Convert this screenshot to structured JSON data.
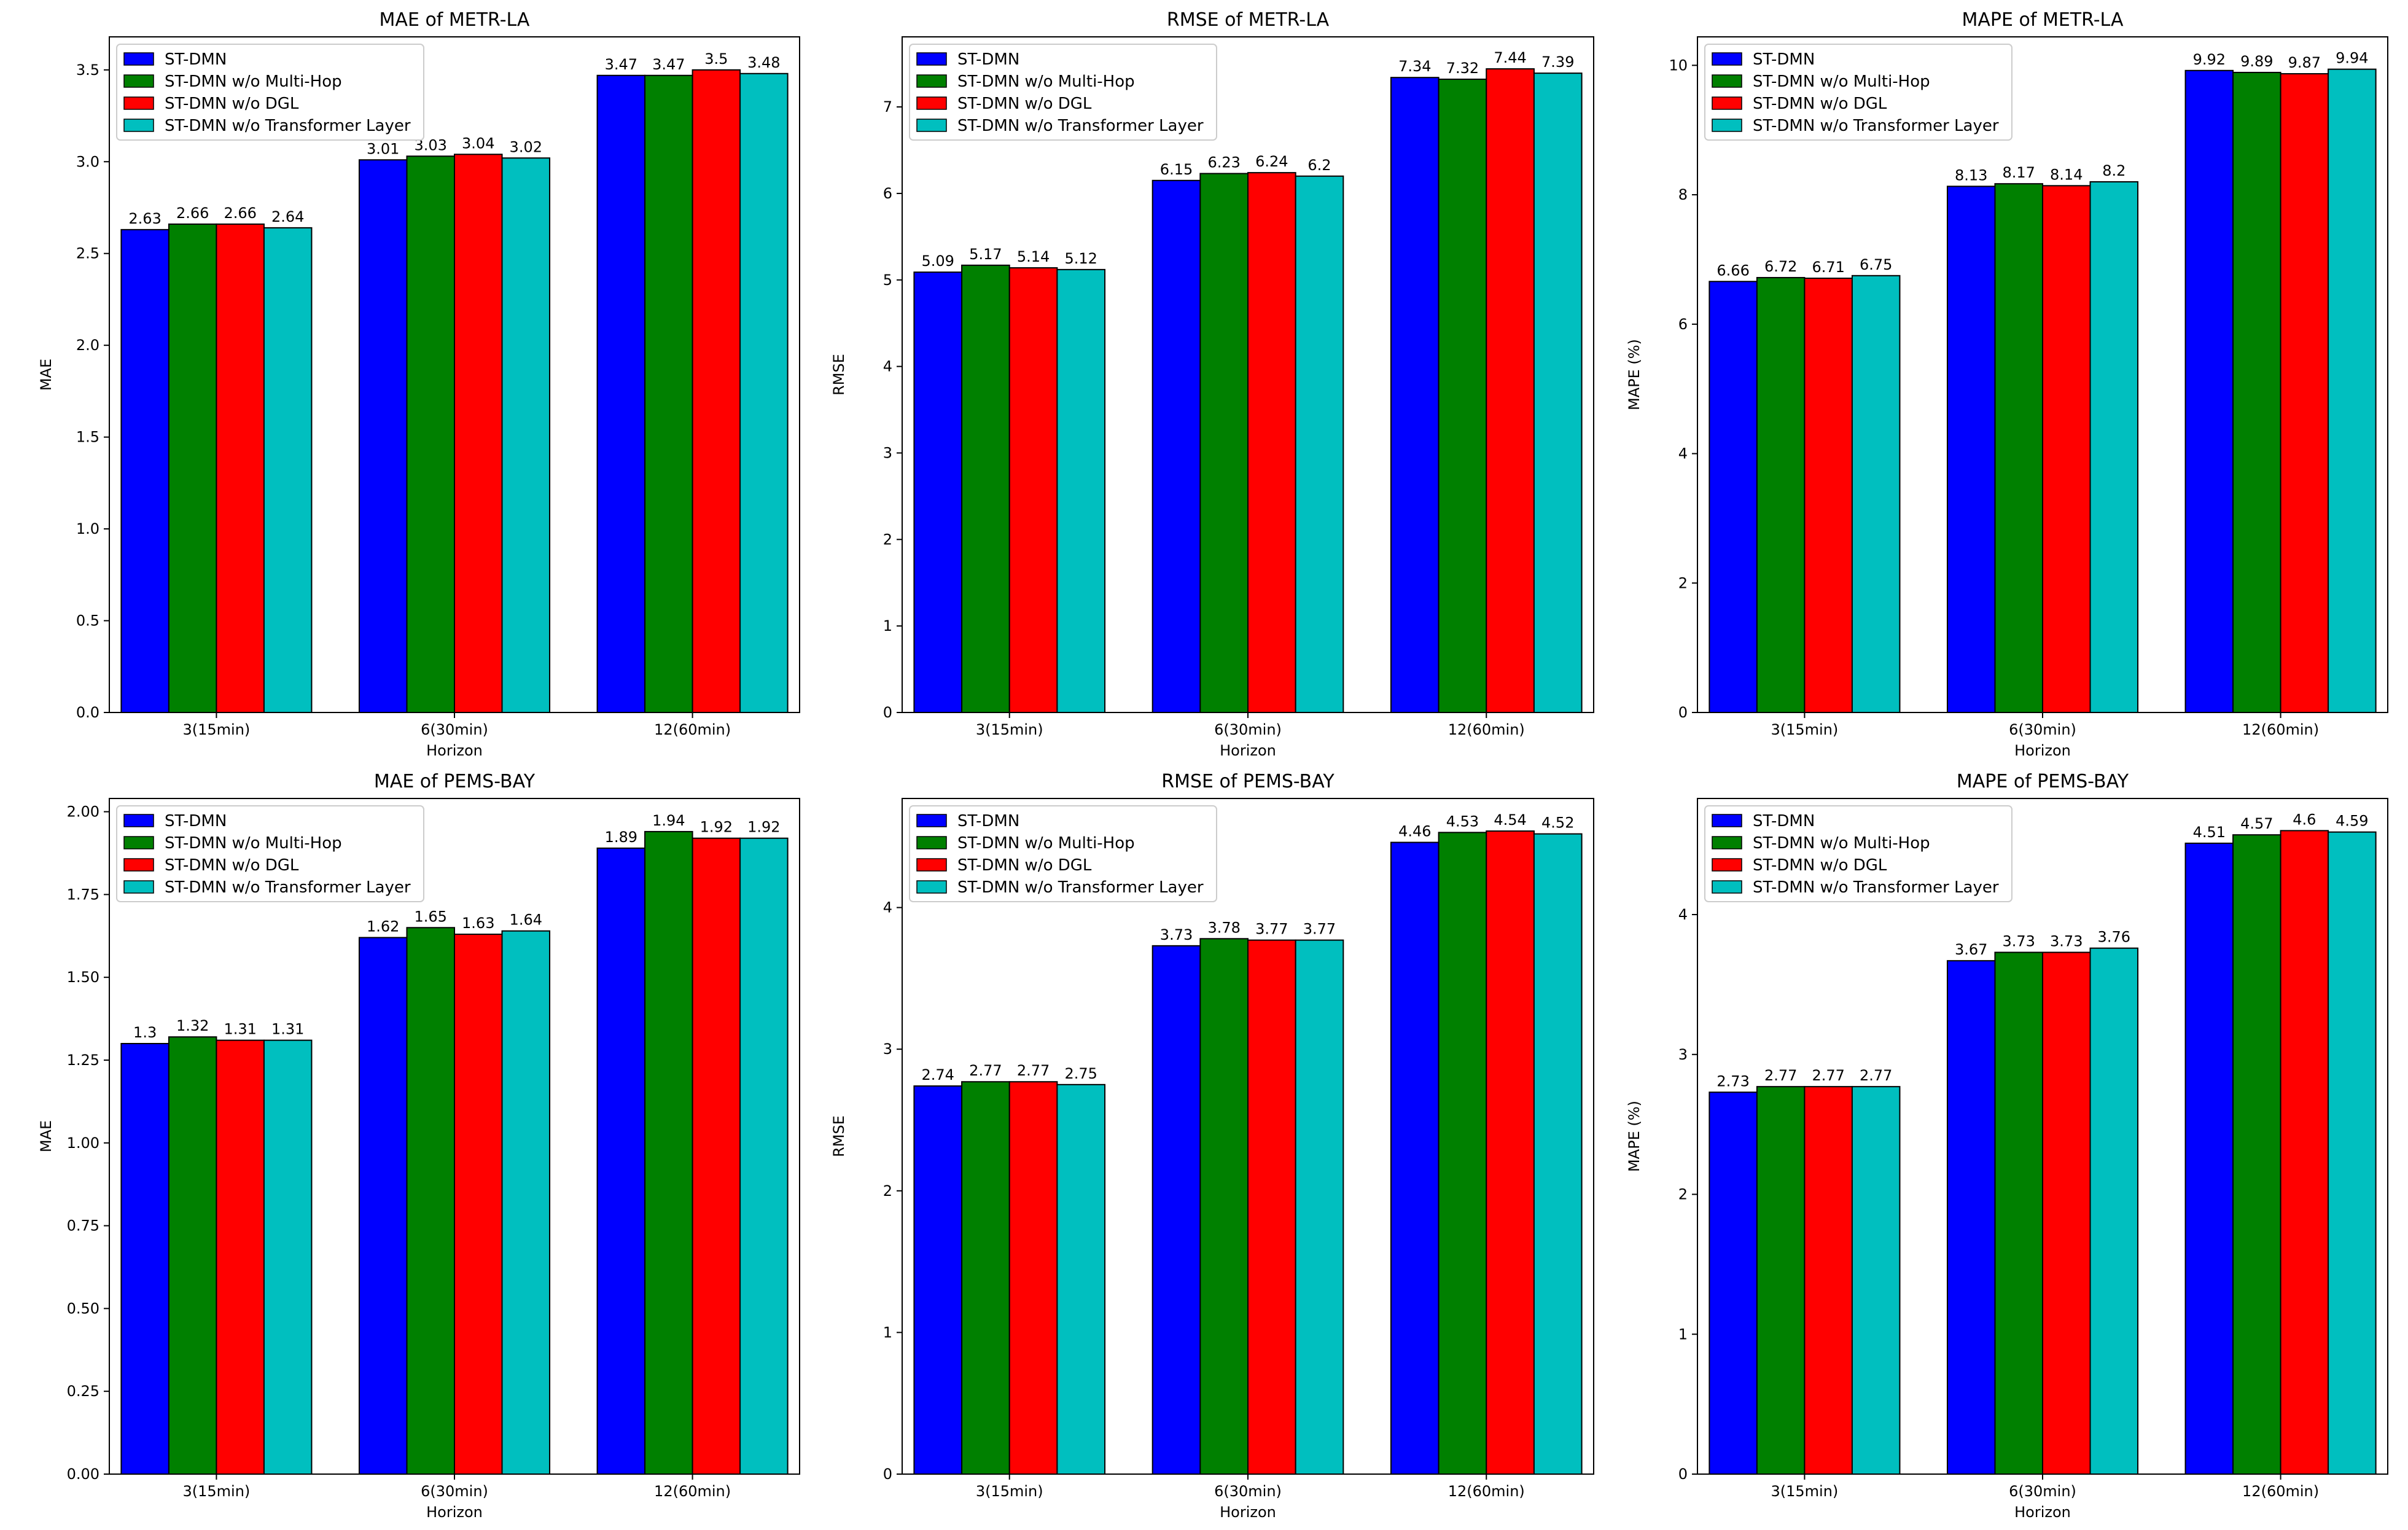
{
  "series_colors": [
    "#0000ff",
    "#008000",
    "#ff0000",
    "#00bfbf"
  ],
  "chart_data": [
    {
      "type": "bar",
      "title": "MAE of METR-LA",
      "xlabel": "Horizon",
      "ylabel": "MAE",
      "categories": [
        "3(15min)",
        "6(30min)",
        "12(60min)"
      ],
      "ylim": [
        0,
        3.68
      ],
      "yticks": [
        "0.0",
        "0.5",
        "1.0",
        "1.5",
        "2.0",
        "2.5",
        "3.0",
        "3.5"
      ],
      "series": [
        {
          "name": "ST-DMN",
          "values": [
            2.63,
            3.01,
            3.47
          ]
        },
        {
          "name": "ST-DMN w/o Multi-Hop",
          "values": [
            2.66,
            3.03,
            3.47
          ]
        },
        {
          "name": "ST-DMN w/o DGL",
          "values": [
            2.66,
            3.04,
            3.5
          ]
        },
        {
          "name": "ST-DMN w/o Transformer Layer",
          "values": [
            2.64,
            3.02,
            3.48
          ]
        }
      ]
    },
    {
      "type": "bar",
      "title": "RMSE of METR-LA",
      "xlabel": "Horizon",
      "ylabel": "RMSE",
      "categories": [
        "3(15min)",
        "6(30min)",
        "12(60min)"
      ],
      "ylim": [
        0,
        7.81
      ],
      "yticks": [
        "0",
        "1",
        "2",
        "3",
        "4",
        "5",
        "6",
        "7"
      ],
      "series": [
        {
          "name": "ST-DMN",
          "values": [
            5.09,
            6.15,
            7.34
          ]
        },
        {
          "name": "ST-DMN w/o Multi-Hop",
          "values": [
            5.17,
            6.23,
            7.32
          ]
        },
        {
          "name": "ST-DMN w/o DGL",
          "values": [
            5.14,
            6.24,
            7.44
          ]
        },
        {
          "name": "ST-DMN w/o Transformer Layer",
          "values": [
            5.12,
            6.2,
            7.39
          ]
        }
      ]
    },
    {
      "type": "bar",
      "title": "MAPE of METR-LA",
      "xlabel": "Horizon",
      "ylabel": "MAPE (%)",
      "categories": [
        "3(15min)",
        "6(30min)",
        "12(60min)"
      ],
      "ylim": [
        0,
        10.44
      ],
      "yticks": [
        "0",
        "2",
        "4",
        "6",
        "8",
        "10"
      ],
      "series": [
        {
          "name": "ST-DMN",
          "values": [
            6.66,
            8.13,
            9.92
          ]
        },
        {
          "name": "ST-DMN w/o Multi-Hop",
          "values": [
            6.72,
            8.17,
            9.89
          ]
        },
        {
          "name": "ST-DMN w/o DGL",
          "values": [
            6.71,
            8.14,
            9.87
          ]
        },
        {
          "name": "ST-DMN w/o Transformer Layer",
          "values": [
            6.75,
            8.2,
            9.94
          ]
        }
      ]
    },
    {
      "type": "bar",
      "title": "MAE of PEMS-BAY",
      "xlabel": "Horizon",
      "ylabel": "MAE",
      "categories": [
        "3(15min)",
        "6(30min)",
        "12(60min)"
      ],
      "ylim": [
        0,
        2.04
      ],
      "yticks": [
        "0.00",
        "0.25",
        "0.50",
        "0.75",
        "1.00",
        "1.25",
        "1.50",
        "1.75",
        "2.00"
      ],
      "series": [
        {
          "name": "ST-DMN",
          "values": [
            1.3,
            1.62,
            1.89
          ]
        },
        {
          "name": "ST-DMN w/o Multi-Hop",
          "values": [
            1.32,
            1.65,
            1.94
          ]
        },
        {
          "name": "ST-DMN w/o DGL",
          "values": [
            1.31,
            1.63,
            1.92
          ]
        },
        {
          "name": "ST-DMN w/o Transformer Layer",
          "values": [
            1.31,
            1.64,
            1.92
          ]
        }
      ]
    },
    {
      "type": "bar",
      "title": "RMSE of PEMS-BAY",
      "xlabel": "Horizon",
      "ylabel": "RMSE",
      "categories": [
        "3(15min)",
        "6(30min)",
        "12(60min)"
      ],
      "ylim": [
        0,
        4.77
      ],
      "yticks": [
        "0",
        "1",
        "2",
        "3",
        "4"
      ],
      "series": [
        {
          "name": "ST-DMN",
          "values": [
            2.74,
            3.73,
            4.46
          ]
        },
        {
          "name": "ST-DMN w/o Multi-Hop",
          "values": [
            2.77,
            3.78,
            4.53
          ]
        },
        {
          "name": "ST-DMN w/o DGL",
          "values": [
            2.77,
            3.77,
            4.54
          ]
        },
        {
          "name": "ST-DMN w/o Transformer Layer",
          "values": [
            2.75,
            3.77,
            4.52
          ]
        }
      ]
    },
    {
      "type": "bar",
      "title": "MAPE of PEMS-BAY",
      "xlabel": "Horizon",
      "ylabel": "MAPE (%)",
      "categories": [
        "3(15min)",
        "6(30min)",
        "12(60min)"
      ],
      "ylim": [
        0,
        4.83
      ],
      "yticks": [
        "0",
        "1",
        "2",
        "3",
        "4"
      ],
      "series": [
        {
          "name": "ST-DMN",
          "values": [
            2.73,
            3.67,
            4.51
          ]
        },
        {
          "name": "ST-DMN w/o Multi-Hop",
          "values": [
            2.77,
            3.73,
            4.57
          ]
        },
        {
          "name": "ST-DMN w/o DGL",
          "values": [
            2.77,
            3.73,
            4.6
          ]
        },
        {
          "name": "ST-DMN w/o Transformer Layer",
          "values": [
            2.77,
            3.76,
            4.59
          ]
        }
      ]
    }
  ]
}
